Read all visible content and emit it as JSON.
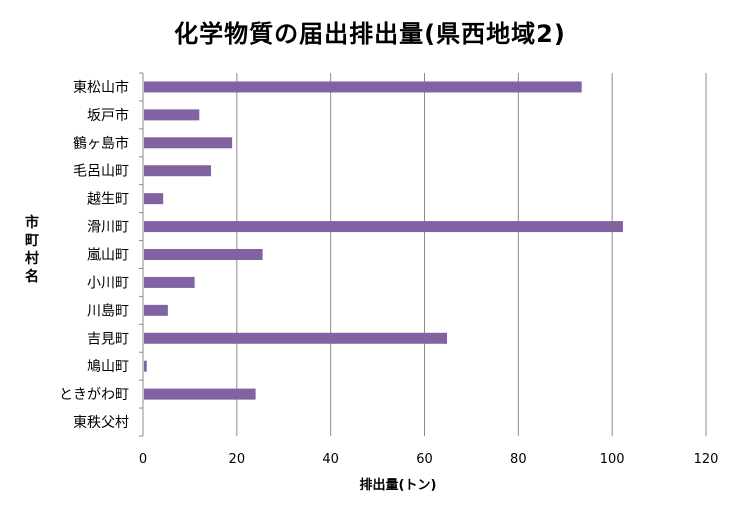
{
  "chart_data": {
    "type": "bar",
    "orientation": "horizontal",
    "title": "化学物質の届出排出量(県西地域2)",
    "xlabel": "排出量(トン)",
    "ylabel": "市町村名",
    "categories": [
      "東松山市",
      "坂戸市",
      "鶴ヶ島市",
      "毛呂山町",
      "越生町",
      "滑川町",
      "嵐山町",
      "小川町",
      "川島町",
      "吉見町",
      "鳩山町",
      "ときがわ町",
      "東秩父村"
    ],
    "values": [
      93.5,
      12,
      19,
      14.5,
      4.3,
      102.3,
      25.5,
      11,
      5.3,
      64.8,
      0.8,
      24,
      0
    ],
    "xlim": [
      0,
      120
    ],
    "xticks": [
      "0",
      "20",
      "40",
      "60",
      "80",
      "100",
      "120"
    ],
    "bar_color": "#8064a2",
    "grid": "vertical",
    "legend": "none"
  }
}
